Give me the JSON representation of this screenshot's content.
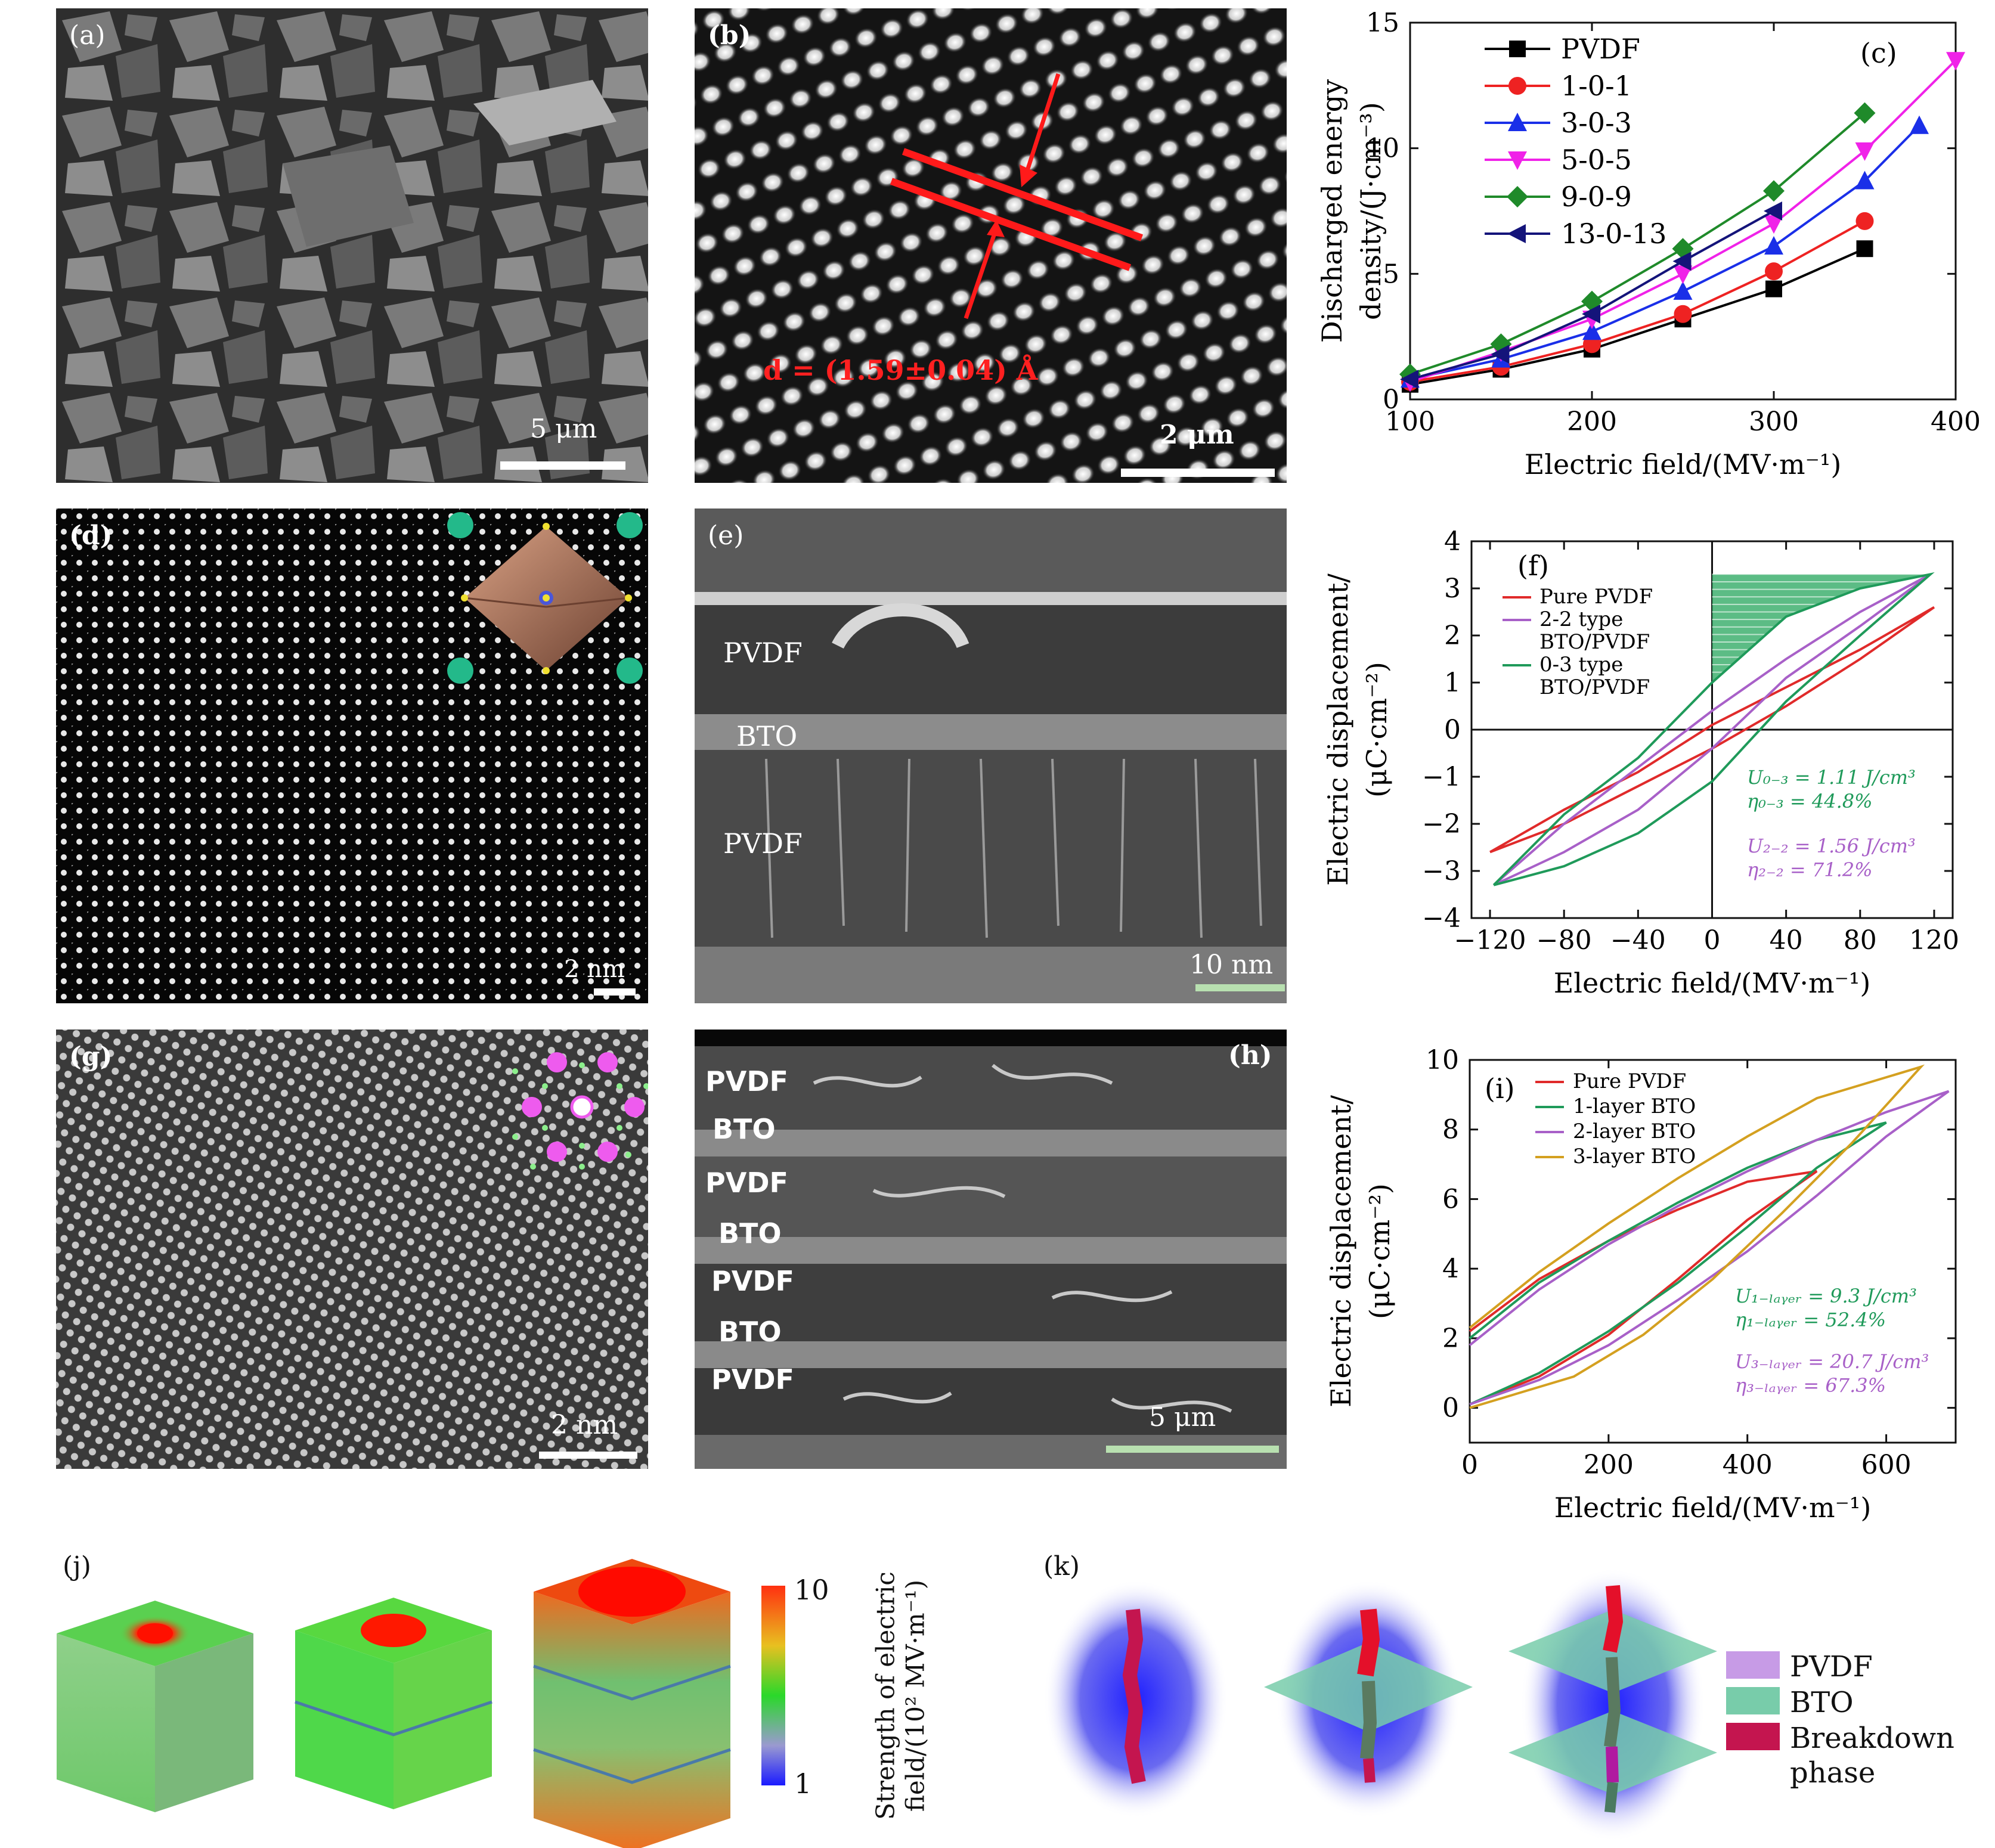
{
  "panels": {
    "a": {
      "label": "(a)",
      "scale": "5 μm"
    },
    "b": {
      "label": "(b)",
      "scale": "2 μm",
      "d_text": "d = (1.59±0.04) Å"
    },
    "d": {
      "label": "(d)",
      "scale": "2 nm"
    },
    "e": {
      "label": "(e)",
      "scale": "10 nm",
      "layers": [
        "PVDF",
        "BTO",
        "PVDF"
      ]
    },
    "g": {
      "label": "(g)",
      "scale": "2 nm"
    },
    "h": {
      "label": "(h)",
      "scale": "5 μm",
      "layers": [
        "PVDF",
        "BTO",
        "PVDF",
        "BTO",
        "PVDF",
        "BTO",
        "PVDF"
      ]
    },
    "j": {
      "label": "(j)",
      "colorbar_max": "10",
      "colorbar_min": "1",
      "colorbar_title_1": "Strength of electric",
      "colorbar_title_2": "field/(10² MV·m⁻¹)"
    },
    "k": {
      "label": "(k)",
      "legend": [
        "PVDF",
        "BTO",
        "Breakdown",
        "phase"
      ]
    }
  },
  "colors": {
    "pvdf": "#c79be6",
    "bto": "#78ccaa",
    "breakdown": "#c4154f",
    "red": "#e02020",
    "green": "#1a8a4a",
    "purple": "#b048c8"
  },
  "chart_data": [
    {
      "id": "c",
      "type": "line",
      "label": "(c)",
      "title": "",
      "xlabel": "Electric field/(MV·m⁻¹)",
      "ylabel_1": "Discharged energy",
      "ylabel_2": "density/(J·cm⁻³)",
      "xlim": [
        100,
        400
      ],
      "ylim": [
        0,
        15
      ],
      "xticks": [
        100,
        200,
        300,
        400
      ],
      "yticks": [
        0,
        5,
        10,
        15
      ],
      "series": [
        {
          "name": "PVDF",
          "color": "#000000",
          "marker": "square",
          "x": [
            100,
            150,
            200,
            250,
            300,
            350
          ],
          "y": [
            0.6,
            1.2,
            2.0,
            3.2,
            4.4,
            6.0
          ]
        },
        {
          "name": "1-0-1",
          "color": "#ee2222",
          "marker": "circle",
          "x": [
            100,
            150,
            200,
            250,
            300,
            350
          ],
          "y": [
            0.7,
            1.3,
            2.2,
            3.4,
            5.1,
            7.1
          ]
        },
        {
          "name": "3-0-3",
          "color": "#1a2fe8",
          "marker": "triangle-up",
          "x": [
            100,
            150,
            200,
            250,
            300,
            350,
            380
          ],
          "y": [
            0.8,
            1.6,
            2.7,
            4.3,
            6.1,
            8.7,
            10.9
          ]
        },
        {
          "name": "5-0-5",
          "color": "#f022e8",
          "marker": "triangle-down",
          "x": [
            100,
            150,
            200,
            250,
            300,
            350,
            400
          ],
          "y": [
            0.7,
            1.9,
            3.2,
            5.0,
            7.0,
            9.9,
            13.5
          ]
        },
        {
          "name": "9-0-9",
          "color": "#1f8a2a",
          "marker": "diamond",
          "x": [
            100,
            150,
            200,
            250,
            300,
            350
          ],
          "y": [
            1.0,
            2.2,
            3.9,
            6.0,
            8.3,
            11.4
          ]
        },
        {
          "name": "13-0-13",
          "color": "#14147a",
          "marker": "triangle-left",
          "x": [
            100,
            150,
            200,
            250,
            300
          ],
          "y": [
            0.8,
            1.8,
            3.4,
            5.5,
            7.5
          ]
        }
      ]
    },
    {
      "id": "f",
      "type": "line",
      "label": "(f)",
      "xlabel": "Electric field/(MV·m⁻¹)",
      "ylabel_1": "Electric displacement/",
      "ylabel_2": "(μC·cm⁻²)",
      "xlim": [
        -130,
        130
      ],
      "ylim": [
        -4,
        4
      ],
      "xticks": [
        -120,
        -80,
        -40,
        0,
        40,
        80,
        120
      ],
      "yticks": [
        -4,
        -3,
        -2,
        -1,
        0,
        1,
        2,
        3,
        4
      ],
      "legend": [
        "Pure PVDF",
        "2-2 type",
        "BTO/PVDF",
        "0-3 type",
        "BTO/PVDF"
      ],
      "ann_green_1": "U₀₋₃ = 1.11 J/cm³",
      "ann_green_2": "η₀₋₃ = 44.8%",
      "ann_purple_1": "U₂₋₂ = 1.56 J/cm³",
      "ann_purple_2": "η₂₋₂ = 71.2%",
      "series": [
        {
          "name": "Pure PVDF",
          "color": "#e02a2a",
          "upper": [
            [
              -120,
              -2.6
            ],
            [
              -80,
              -1.7
            ],
            [
              -40,
              -0.9
            ],
            [
              0,
              0.1
            ],
            [
              40,
              0.9
            ],
            [
              80,
              1.7
            ],
            [
              120,
              2.6
            ]
          ],
          "lower": [
            [
              120,
              2.6
            ],
            [
              80,
              1.5
            ],
            [
              40,
              0.5
            ],
            [
              0,
              -0.4
            ],
            [
              -40,
              -1.2
            ],
            [
              -80,
              -2.0
            ],
            [
              -120,
              -2.6
            ]
          ]
        },
        {
          "name": "2-2 type BTO/PVDF",
          "color": "#a860c8",
          "upper": [
            [
              -118,
              -3.3
            ],
            [
              -80,
              -2.0
            ],
            [
              -40,
              -0.8
            ],
            [
              0,
              0.4
            ],
            [
              40,
              1.5
            ],
            [
              80,
              2.5
            ],
            [
              118,
              3.3
            ]
          ],
          "lower": [
            [
              118,
              3.3
            ],
            [
              80,
              2.2
            ],
            [
              40,
              1.1
            ],
            [
              0,
              -0.4
            ],
            [
              -40,
              -1.7
            ],
            [
              -80,
              -2.6
            ],
            [
              -118,
              -3.3
            ]
          ]
        },
        {
          "name": "0-3 type BTO/PVDF",
          "color": "#1f9a5a",
          "upper": [
            [
              -118,
              -3.3
            ],
            [
              -80,
              -1.8
            ],
            [
              -40,
              -0.6
            ],
            [
              0,
              1.0
            ],
            [
              40,
              2.4
            ],
            [
              80,
              3.0
            ],
            [
              118,
              3.3
            ]
          ],
          "lower": [
            [
              118,
              3.3
            ],
            [
              80,
              2.0
            ],
            [
              40,
              0.6
            ],
            [
              0,
              -1.1
            ],
            [
              -40,
              -2.2
            ],
            [
              -80,
              -2.9
            ],
            [
              -118,
              -3.3
            ]
          ]
        }
      ]
    },
    {
      "id": "i",
      "type": "line",
      "label": "(i)",
      "xlabel": "Electric field/(MV·m⁻¹)",
      "ylabel_1": "Electric displacement/",
      "ylabel_2": "(μC·cm⁻²)",
      "xlim": [
        0,
        700
      ],
      "ylim": [
        -1,
        10
      ],
      "xticks": [
        0,
        200,
        400,
        600
      ],
      "yticks": [
        0,
        2,
        4,
        6,
        8,
        10
      ],
      "legend": [
        "Pure PVDF",
        "1-layer BTO",
        "2-layer BTO",
        "3-layer BTO"
      ],
      "ann_green_1": "U₁₋ₗₐᵧₑᵣ = 9.3 J/cm³",
      "ann_green_2": "η₁₋ₗₐᵧₑᵣ = 52.4%",
      "ann_purple_1": "U₃₋ₗₐᵧₑᵣ = 20.7 J/cm³",
      "ann_purple_2": "η₃₋ₗₐᵧₑᵣ = 67.3%",
      "series": [
        {
          "name": "Pure PVDF",
          "color": "#e02a2a",
          "upper": [
            [
              0,
              2.2
            ],
            [
              100,
              3.7
            ],
            [
              200,
              4.8
            ],
            [
              300,
              5.7
            ],
            [
              400,
              6.5
            ],
            [
              500,
              6.8
            ]
          ],
          "lower": [
            [
              500,
              6.8
            ],
            [
              400,
              5.4
            ],
            [
              300,
              3.7
            ],
            [
              200,
              2.1
            ],
            [
              100,
              0.9
            ],
            [
              0,
              0.1
            ]
          ]
        },
        {
          "name": "1-layer BTO",
          "color": "#1f9a5a",
          "upper": [
            [
              0,
              2.0
            ],
            [
              100,
              3.6
            ],
            [
              200,
              4.8
            ],
            [
              300,
              5.9
            ],
            [
              400,
              6.9
            ],
            [
              500,
              7.7
            ],
            [
              600,
              8.2
            ]
          ],
          "lower": [
            [
              600,
              8.2
            ],
            [
              500,
              6.9
            ],
            [
              400,
              5.2
            ],
            [
              300,
              3.6
            ],
            [
              200,
              2.2
            ],
            [
              100,
              1.0
            ],
            [
              0,
              0.1
            ]
          ]
        },
        {
          "name": "2-layer BTO",
          "color": "#a860c8",
          "upper": [
            [
              0,
              1.8
            ],
            [
              100,
              3.4
            ],
            [
              200,
              4.7
            ],
            [
              300,
              5.8
            ],
            [
              400,
              6.8
            ],
            [
              500,
              7.7
            ],
            [
              600,
              8.5
            ],
            [
              690,
              9.1
            ]
          ],
          "lower": [
            [
              690,
              9.1
            ],
            [
              600,
              7.8
            ],
            [
              500,
              6.1
            ],
            [
              400,
              4.5
            ],
            [
              300,
              3.1
            ],
            [
              200,
              1.8
            ],
            [
              100,
              0.8
            ],
            [
              0,
              0.1
            ]
          ]
        },
        {
          "name": "3-layer BTO",
          "color": "#d4a020",
          "upper": [
            [
              0,
              2.3
            ],
            [
              100,
              3.9
            ],
            [
              200,
              5.3
            ],
            [
              300,
              6.6
            ],
            [
              400,
              7.8
            ],
            [
              500,
              8.9
            ],
            [
              650,
              9.8
            ]
          ],
          "lower": [
            [
              650,
              9.8
            ],
            [
              550,
              7.6
            ],
            [
              450,
              5.6
            ],
            [
              350,
              3.7
            ],
            [
              250,
              2.1
            ],
            [
              150,
              0.9
            ],
            [
              0,
              0.0
            ]
          ]
        }
      ]
    }
  ]
}
